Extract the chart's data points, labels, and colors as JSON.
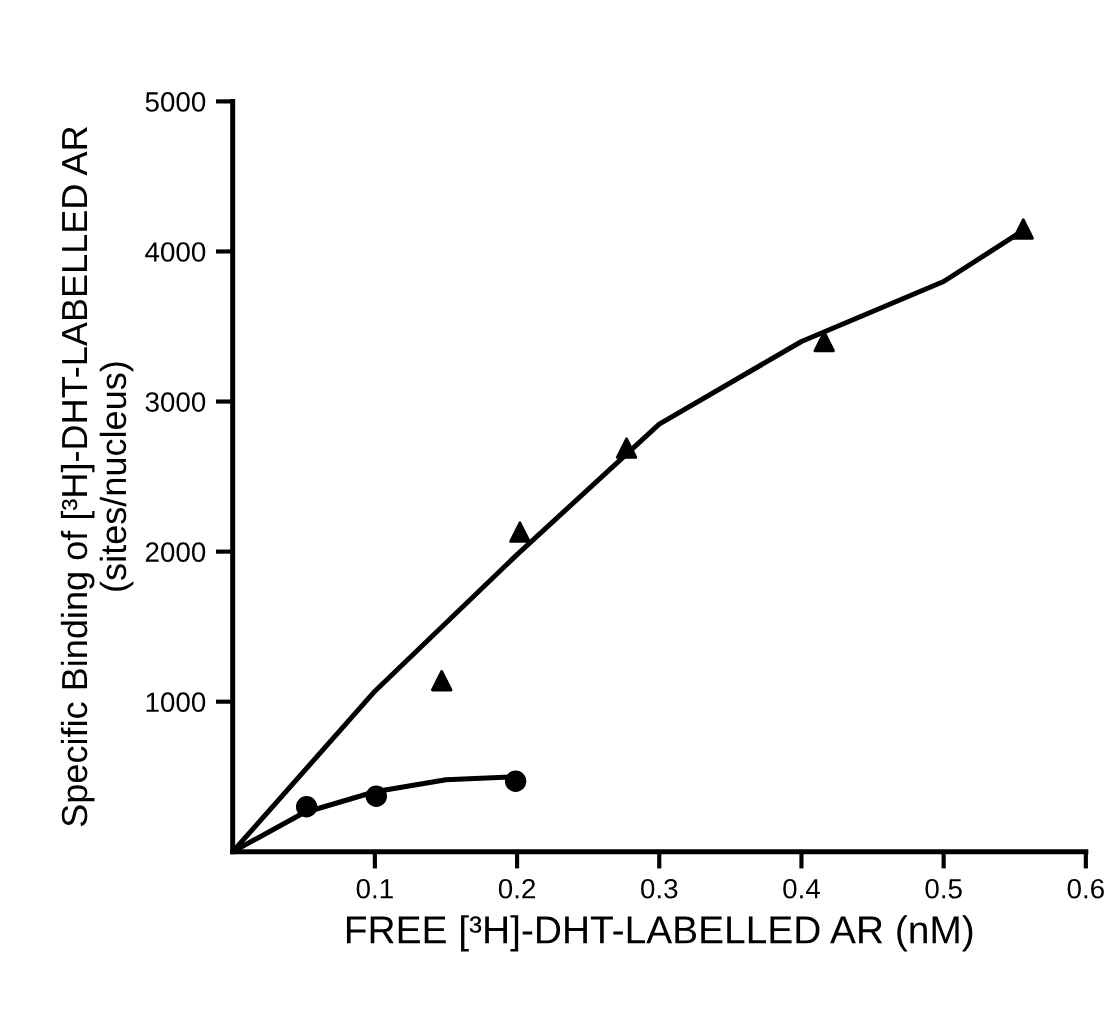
{
  "chart_data": {
    "type": "scatter",
    "xlabel": "FREE [³H]-DHT-LABELLED AR (nM)",
    "ylabel": "Specific Binding of [³H]-DHT-LABELLED AR\n(sites/nucleus)",
    "xlim": [
      0,
      0.6
    ],
    "ylim": [
      0,
      5000
    ],
    "xticks": [
      0.1,
      0.2,
      0.3,
      0.4,
      0.5,
      0.6
    ],
    "yticks": [
      1000,
      2000,
      3000,
      4000,
      5000
    ],
    "grid": false,
    "legend": false,
    "series": [
      {
        "marker": "triangle",
        "color": "#000000",
        "x": [
          0.147,
          0.202,
          0.277,
          0.416,
          0.556
        ],
        "values": [
          1140,
          2130,
          2690,
          3400,
          4150
        ]
      },
      {
        "marker": "circle",
        "color": "#000000",
        "x": [
          0.052,
          0.101,
          0.199
        ],
        "values": [
          300,
          370,
          470
        ]
      },
      {
        "type": "line",
        "marker": "none",
        "line_style": "solid",
        "color": "#000000",
        "x": [
          0,
          0.1,
          0.2,
          0.3,
          0.4,
          0.5,
          0.556
        ],
        "values": [
          0,
          1070,
          1980,
          2850,
          3400,
          3800,
          4140
        ]
      },
      {
        "type": "line",
        "marker": "none",
        "line_style": "solid",
        "color": "#000000",
        "x": [
          0,
          0.05,
          0.1,
          0.15,
          0.2
        ],
        "values": [
          0,
          260,
          400,
          480,
          500
        ]
      }
    ]
  }
}
